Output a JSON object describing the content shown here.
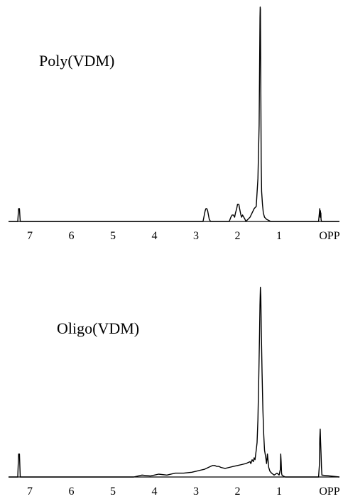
{
  "chart_data": [
    {
      "type": "line",
      "title": "Poly(VDM)",
      "xlabel": "",
      "ylabel": "",
      "x_reversed": true,
      "xlim": [
        8.0,
        -0.5
      ],
      "ylim": [
        0,
        100
      ],
      "x_tick_labels": [
        "7",
        "6",
        "5",
        "4",
        "3",
        "2",
        "1",
        "OPP"
      ],
      "x_tick_values": [
        7,
        6,
        5,
        4,
        3,
        2,
        1,
        0
      ],
      "grid": false,
      "series": [
        {
          "x": [
            8.0,
            7.29,
            7.27,
            7.25,
            7.23,
            7.21,
            2.95,
            2.83,
            2.8,
            2.78,
            2.76,
            2.74,
            2.72,
            2.7,
            2.68,
            2.65,
            2.55,
            2.2,
            2.16,
            2.13,
            2.1,
            2.07,
            2.05,
            2.02,
            2.0,
            1.97,
            1.95,
            1.92,
            1.9,
            1.88,
            1.85,
            1.82,
            1.8,
            1.75,
            1.7,
            1.65,
            1.6,
            1.55,
            1.51,
            1.48,
            1.47,
            1.46,
            1.455,
            1.45,
            1.44,
            1.43,
            1.42,
            1.4,
            1.38,
            1.35,
            1.3,
            1.2,
            0.05,
            0.02,
            0.01,
            0.005,
            0.0,
            -0.005,
            -0.01,
            -0.02,
            -0.5
          ],
          "y": [
            0,
            0,
            6,
            6,
            0,
            0,
            0,
            0,
            3,
            5,
            6,
            6,
            5,
            3,
            1,
            0,
            0,
            0,
            2,
            3,
            3,
            2,
            4,
            6,
            8,
            8,
            6,
            3,
            2,
            3,
            2,
            1,
            0,
            1,
            2,
            4,
            6,
            7,
            20,
            45,
            70,
            95,
            100,
            99,
            60,
            28,
            14,
            8,
            4,
            2,
            1,
            0,
            0,
            6,
            2,
            5,
            3,
            4,
            1,
            0,
            0
          ]
        }
      ]
    },
    {
      "type": "line",
      "title": "Oligo(VDM)",
      "xlabel": "",
      "ylabel": "",
      "x_reversed": true,
      "xlim": [
        8.0,
        -0.5
      ],
      "ylim": [
        0,
        100
      ],
      "x_tick_labels": [
        "7",
        "6",
        "5",
        "4",
        "3",
        "2",
        "1",
        "OPP"
      ],
      "x_tick_values": [
        7,
        6,
        5,
        4,
        3,
        2,
        1,
        0
      ],
      "grid": false,
      "series": [
        {
          "x": [
            8.0,
            7.29,
            7.27,
            7.25,
            7.23,
            7.21,
            6.4,
            5.5,
            4.5,
            4.3,
            4.1,
            3.9,
            3.7,
            3.5,
            3.3,
            3.1,
            3.0,
            2.9,
            2.8,
            2.7,
            2.6,
            2.55,
            2.5,
            2.45,
            2.4,
            2.3,
            2.2,
            2.1,
            2.0,
            1.9,
            1.8,
            1.7,
            1.68,
            1.65,
            1.62,
            1.6,
            1.58,
            1.55,
            1.53,
            1.51,
            1.49,
            1.47,
            1.46,
            1.45,
            1.44,
            1.43,
            1.41,
            1.39,
            1.37,
            1.35,
            1.32,
            1.3,
            1.28,
            1.25,
            1.22,
            1.18,
            1.12,
            1.05,
            1.0,
            0.97,
            0.96,
            0.95,
            0.94,
            0.93,
            0.9,
            0.85,
            0.8,
            0.7,
            0.5,
            0.3,
            0.05,
            0.03,
            0.02,
            0.01,
            0.0,
            -0.01,
            -0.02,
            -0.03,
            -0.5
          ],
          "y": [
            0,
            0,
            12,
            12,
            0,
            0,
            0,
            0,
            0,
            1,
            0.5,
            1.5,
            1,
            2,
            2,
            2.5,
            3,
            3.5,
            4,
            5,
            6,
            6,
            5.5,
            5.5,
            5,
            4.5,
            5,
            5.5,
            6,
            6.5,
            7,
            8,
            7,
            9,
            8,
            10,
            9,
            14,
            18,
            30,
            50,
            75,
            90,
            99,
            94,
            80,
            55,
            35,
            22,
            14,
            10,
            7,
            12,
            5,
            3,
            2,
            1,
            2,
            1,
            4,
            12,
            8,
            2,
            1,
            0.5,
            0,
            0,
            0,
            0,
            0,
            0,
            6,
            20,
            25,
            18,
            12,
            5,
            1,
            0
          ]
        }
      ]
    }
  ]
}
